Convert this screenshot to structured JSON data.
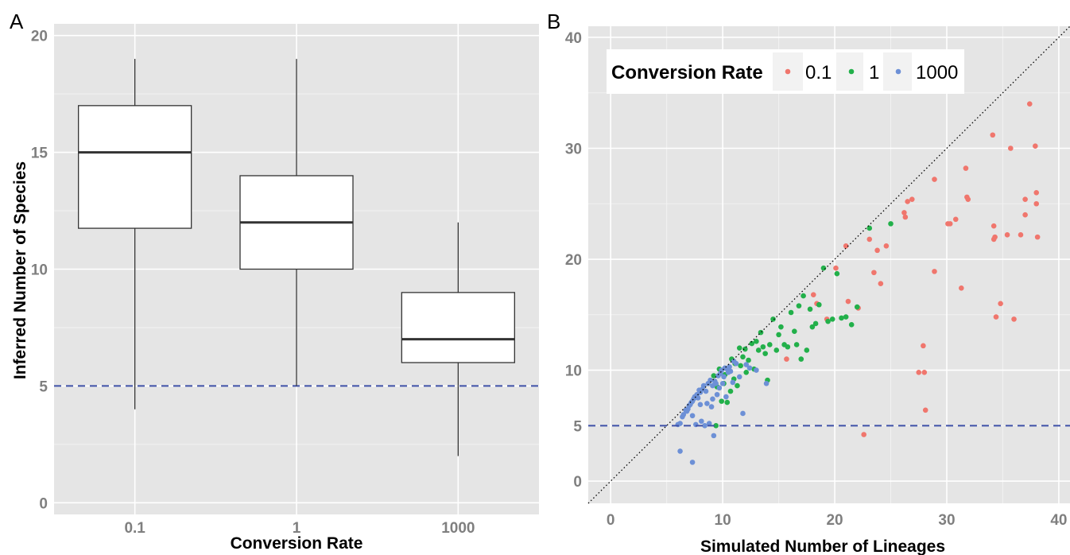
{
  "colors": {
    "panel_bg": "#e5e5e5",
    "grid_major": "#ffffff",
    "grid_minor": "#f2f2f2",
    "reference_line": "#3f51a8",
    "box_fill": "#ffffff",
    "box_stroke": "#333333",
    "series_0.1": "#f0766d",
    "series_1": "#22b04a",
    "series_1000": "#6d90d6"
  },
  "chart_data": [
    {
      "panel": "A",
      "type": "box",
      "xlabel": "Conversion Rate",
      "ylabel": "Inferred Number of Species",
      "categories": [
        "0.1",
        "1",
        "1000"
      ],
      "boxes": [
        {
          "category": "0.1",
          "min": 4,
          "q1": 11.75,
          "median": 15,
          "q3": 17,
          "max": 19
        },
        {
          "category": "1",
          "min": 5,
          "q1": 10,
          "median": 12,
          "q3": 14,
          "max": 19
        },
        {
          "category": "1000",
          "min": 2,
          "q1": 6,
          "median": 7,
          "q3": 9,
          "max": 12
        }
      ],
      "ylim": [
        -0.5,
        20.5
      ],
      "y_ticks": [
        "0",
        "5",
        "10",
        "15",
        "20"
      ],
      "reference_line_y": 5,
      "grid": true
    },
    {
      "panel": "B",
      "type": "scatter",
      "xlabel": "Simulated Number of Lineages",
      "ylabel": "",
      "xlim": [
        -2,
        41
      ],
      "ylim": [
        -2,
        41
      ],
      "x_ticks": [
        "0",
        "10",
        "20",
        "30",
        "40"
      ],
      "y_ticks": [
        "0",
        "5",
        "10",
        "20",
        "30",
        "40"
      ],
      "reference_line_y": 5,
      "identity_line": true,
      "grid": true,
      "legend": {
        "title": "Conversion Rate",
        "position": "top-left"
      },
      "series": [
        {
          "name": "0.1",
          "color": "#f0766d",
          "x": [
            15.7,
            18.1,
            18.4,
            19.3,
            20.1,
            21.0,
            21.2,
            22.1,
            22.6,
            23.1,
            23.5,
            23.8,
            24.1,
            24.6,
            26.2,
            26.3,
            26.5,
            26.9,
            27.5,
            27.9,
            28.0,
            28.1,
            28.9,
            28.9,
            30.1,
            30.3,
            30.8,
            31.3,
            31.7,
            31.8,
            31.9,
            34.1,
            34.2,
            34.3,
            34.2,
            34.4,
            34.8,
            35.4,
            35.7,
            36.0,
            36.6,
            37.0,
            37.0,
            37.4,
            37.9,
            38.0,
            38.0,
            38.1
          ],
          "y": [
            11,
            16.8,
            16,
            14.6,
            19.2,
            21.2,
            16.2,
            15.6,
            4.2,
            21.8,
            18.8,
            20.8,
            17.8,
            21.2,
            24.2,
            23.8,
            25.2,
            25.4,
            9.8,
            12.2,
            9.8,
            6.4,
            27.2,
            18.9,
            23.2,
            23.2,
            23.6,
            17.4,
            28.2,
            25.6,
            25.4,
            31.2,
            23.0,
            22.0,
            21.8,
            14.8,
            16.0,
            22.2,
            30.0,
            14.6,
            22.2,
            25.4,
            24.0,
            34.0,
            30.2,
            26.0,
            25.0,
            22.0
          ]
        },
        {
          "name": "1",
          "color": "#22b04a",
          "x": [
            9.2,
            9.4,
            9.5,
            9.7,
            9.9,
            10.1,
            10.2,
            10.4,
            10.5,
            10.7,
            10.8,
            11.0,
            11.1,
            11.3,
            11.5,
            11.6,
            11.8,
            12.0,
            12.1,
            12.3,
            12.6,
            12.8,
            13.0,
            13.2,
            13.4,
            13.6,
            13.8,
            14.0,
            14.2,
            14.5,
            14.8,
            15.0,
            15.2,
            15.5,
            15.8,
            16.1,
            16.4,
            16.6,
            16.8,
            17.0,
            17.2,
            17.5,
            17.8,
            18.0,
            18.3,
            18.6,
            19.0,
            19.4,
            19.8,
            20.2,
            20.6,
            21.0,
            21.5,
            22.0,
            23.1,
            25.0
          ],
          "y": [
            9.5,
            5.0,
            8.5,
            10.1,
            7.2,
            8.8,
            9.6,
            7.1,
            9.9,
            8.1,
            11.0,
            9.2,
            10.6,
            8.6,
            12.0,
            10.4,
            11.2,
            11.9,
            9.8,
            10.9,
            12.4,
            10.1,
            12.6,
            11.8,
            13.4,
            12.1,
            11.5,
            9.1,
            12.3,
            14.6,
            11.8,
            13.2,
            13.9,
            12.3,
            12.1,
            15.2,
            13.5,
            12.3,
            15.8,
            11.0,
            16.7,
            11.8,
            15.5,
            13.9,
            14.2,
            15.9,
            19.2,
            14.4,
            14.6,
            18.7,
            14.7,
            14.8,
            14.1,
            15.7,
            22.8,
            23.2
          ]
        },
        {
          "name": "1000",
          "color": "#6d90d6",
          "x": [
            6.0,
            6.2,
            6.4,
            6.5,
            6.7,
            6.8,
            6.9,
            7.0,
            7.1,
            7.2,
            7.3,
            7.3,
            7.4,
            7.5,
            7.6,
            7.7,
            7.8,
            7.9,
            8.0,
            8.0,
            8.1,
            8.2,
            8.3,
            8.4,
            8.5,
            8.6,
            8.7,
            8.8,
            8.9,
            9.0,
            9.1,
            9.1,
            9.2,
            9.3,
            9.4,
            9.5,
            9.6,
            9.7,
            9.8,
            9.9,
            10.0,
            10.1,
            10.2,
            10.3,
            10.4,
            10.5,
            10.6,
            10.7,
            10.9,
            11.0,
            11.2,
            11.5,
            11.8,
            12.1,
            12.4,
            13.0,
            13.9,
            7.3,
            6.2
          ],
          "y": [
            5.1,
            5.2,
            5.8,
            6.0,
            6.4,
            6.3,
            6.5,
            6.8,
            6.9,
            7.1,
            7.2,
            5.9,
            7.4,
            7.6,
            5.1,
            7.8,
            7.5,
            8.2,
            6.9,
            8.0,
            5.4,
            8.3,
            8.6,
            5.0,
            8.1,
            7.0,
            8.8,
            5.2,
            9.1,
            6.7,
            8.6,
            7.4,
            4.1,
            9.0,
            8.8,
            7.8,
            9.5,
            8.4,
            9.7,
            10.0,
            8.8,
            9.4,
            10.2,
            7.6,
            10.1,
            9.8,
            10.3,
            9.9,
            8.9,
            10.8,
            10.6,
            9.4,
            6.1,
            10.5,
            10.2,
            10.0,
            8.8,
            1.7,
            2.7
          ]
        }
      ]
    }
  ],
  "panels": {
    "a": {
      "letter": "A",
      "ylabel": "Inferred Number of Species",
      "xlabel": "Conversion Rate",
      "y_ticks": [
        "0",
        "5",
        "10",
        "15",
        "20"
      ],
      "x_ticks": [
        "0.1",
        "1",
        "1000"
      ]
    },
    "b": {
      "letter": "B",
      "xlabel": "Simulated Number of Lineages",
      "x_ticks": [
        "0",
        "10",
        "20",
        "30",
        "40"
      ],
      "y_ticks": [
        "0",
        "5",
        "10",
        "20",
        "30",
        "40"
      ],
      "legend": {
        "title": "Conversion Rate",
        "labels": [
          "0.1",
          "1",
          "1000"
        ]
      }
    }
  }
}
